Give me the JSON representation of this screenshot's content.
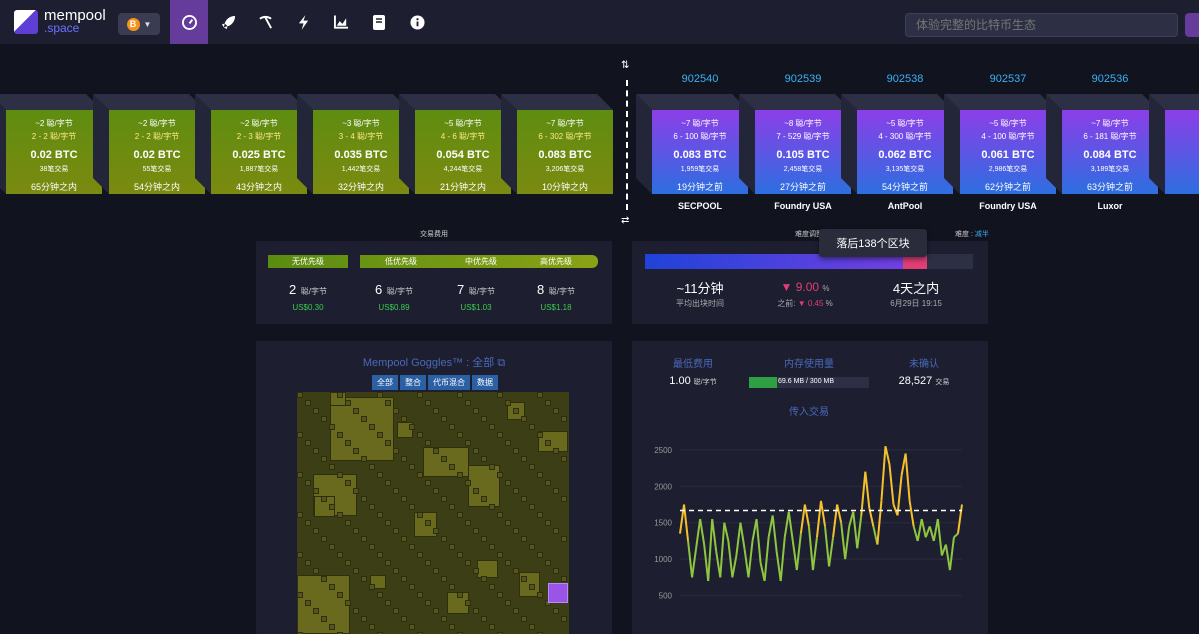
{
  "nav": {
    "logo_line1": "mempool",
    "logo_line2": ".space",
    "network_icon": "B",
    "icons": [
      "dashboard-icon",
      "rocket-icon",
      "pickaxe-icon",
      "lightning-icon",
      "chart-icon",
      "docs-icon",
      "info-icon"
    ],
    "search_placeholder": "体验完整的比特币生态"
  },
  "projected_blocks": [
    {
      "fee": "~2 聪/字节",
      "range": "2 - 2 聪/字节",
      "btc": "0.02 BTC",
      "tx": "38笔交易",
      "time": "65分钟之内"
    },
    {
      "fee": "~2 聪/字节",
      "range": "2 - 2 聪/字节",
      "btc": "0.02 BTC",
      "tx": "55笔交易",
      "time": "54分钟之内"
    },
    {
      "fee": "~2 聪/字节",
      "range": "2 - 3 聪/字节",
      "btc": "0.025 BTC",
      "tx": "1,887笔交易",
      "time": "43分钟之内"
    },
    {
      "fee": "~3 聪/字节",
      "range": "3 - 4 聪/字节",
      "btc": "0.035 BTC",
      "tx": "1,442笔交易",
      "time": "32分钟之内"
    },
    {
      "fee": "~5 聪/字节",
      "range": "4 - 6 聪/字节",
      "btc": "0.054 BTC",
      "tx": "4,244笔交易",
      "time": "21分钟之内"
    },
    {
      "fee": "~7 聪/字节",
      "range": "6 - 302 聪/字节",
      "btc": "0.083 BTC",
      "tx": "3,206笔交易",
      "time": "10分钟之内"
    }
  ],
  "mined_blocks": [
    {
      "height": "902540",
      "fee": "~7 聪/字节",
      "range": "6 - 100 聪/字节",
      "btc": "0.083 BTC",
      "tx": "1,959笔交易",
      "time": "19分钟之前",
      "pool": "SECPOOL"
    },
    {
      "height": "902539",
      "fee": "~8 聪/字节",
      "range": "7 - 529 聪/字节",
      "btc": "0.105 BTC",
      "tx": "2,458笔交易",
      "time": "27分钟之前",
      "pool": "Foundry USA"
    },
    {
      "height": "902538",
      "fee": "~5 聪/字节",
      "range": "4 - 300 聪/字节",
      "btc": "0.062 BTC",
      "tx": "3,135笔交易",
      "time": "54分钟之前",
      "pool": "AntPool"
    },
    {
      "height": "902537",
      "fee": "~5 聪/字节",
      "range": "4 - 100 聪/字节",
      "btc": "0.061 BTC",
      "tx": "2,986笔交易",
      "time": "62分钟之前",
      "pool": "Foundry USA"
    },
    {
      "height": "902536",
      "fee": "~7 聪/字节",
      "range": "6 - 181 聪/字节",
      "btc": "0.084 BTC",
      "tx": "3,189笔交易",
      "time": "63分钟之前",
      "pool": "Luxor"
    },
    {
      "height": "9025",
      "fee": "~5",
      "range": "3 - 9",
      "btc": "0.05",
      "tx": "3,22",
      "time": "83分",
      "pool": "A"
    }
  ],
  "fees": {
    "title": "交易费用",
    "labels": [
      "无优先级",
      "低优先级",
      "中优先级",
      "高优先级"
    ],
    "values": [
      "2",
      "6",
      "7",
      "8"
    ],
    "unit": "聪/字节",
    "usd": [
      "US$0.30",
      "US$0.89",
      "US$1.03",
      "US$1.18"
    ]
  },
  "difficulty": {
    "title": "难度调整",
    "extra_label": "难度",
    "extra_value": "减半",
    "tooltip": "落后138个区块",
    "progress": 0.86,
    "avg_time": "~11分钟",
    "avg_time_label": "平均出块时间",
    "change": "9.00",
    "change_unit": "%",
    "prev_label": "之前:",
    "prev_change": "0.45",
    "eta": "4天之内",
    "eta_date": "6月29日 19:15"
  },
  "goggles": {
    "title": "Mempool Goggles™ : 全部",
    "tabs": [
      "全部",
      "整合",
      "代币混合",
      "数据"
    ]
  },
  "mempool_stats": {
    "min_fee_label": "最低费用",
    "min_fee_value": "1.00",
    "min_fee_unit": "聪/字节",
    "memory_label": "内存使用量",
    "memory_value": "69.6 MB / 300 MB",
    "memory_fraction": 0.232,
    "unconfirmed_label": "未确认",
    "unconfirmed_value": "28,527",
    "unconfirmed_unit": "交易",
    "incoming_label": "传入交易"
  },
  "chart_data": {
    "type": "line",
    "title": "传入交易",
    "ylim": [
      0,
      2800
    ],
    "yticks": [
      500,
      1000,
      1500,
      2000,
      2500
    ],
    "threshold": 1667,
    "grid": true,
    "series": [
      {
        "values": [
          1350,
          1750,
          1250,
          750,
          1150,
          1550,
          1200,
          700,
          1550,
          1100,
          750,
          1500,
          1250,
          750,
          1050,
          1500,
          1150,
          750,
          1250,
          1550,
          950,
          700,
          1300,
          1600,
          1100,
          700,
          1300,
          1650,
          1250,
          850,
          1350,
          1750,
          1450,
          850,
          1300,
          1800,
          1450,
          900,
          1300,
          1750,
          1500,
          1000,
          1450,
          1650,
          1150,
          1600,
          2200,
          1700,
          1450,
          1200,
          1800,
          2550,
          2300,
          1750,
          1600,
          2150,
          2450,
          1800,
          1450,
          1250,
          1550,
          1300,
          1450,
          1250,
          1550,
          1050,
          1200,
          850,
          1300,
          1350,
          1750
        ]
      }
    ]
  }
}
